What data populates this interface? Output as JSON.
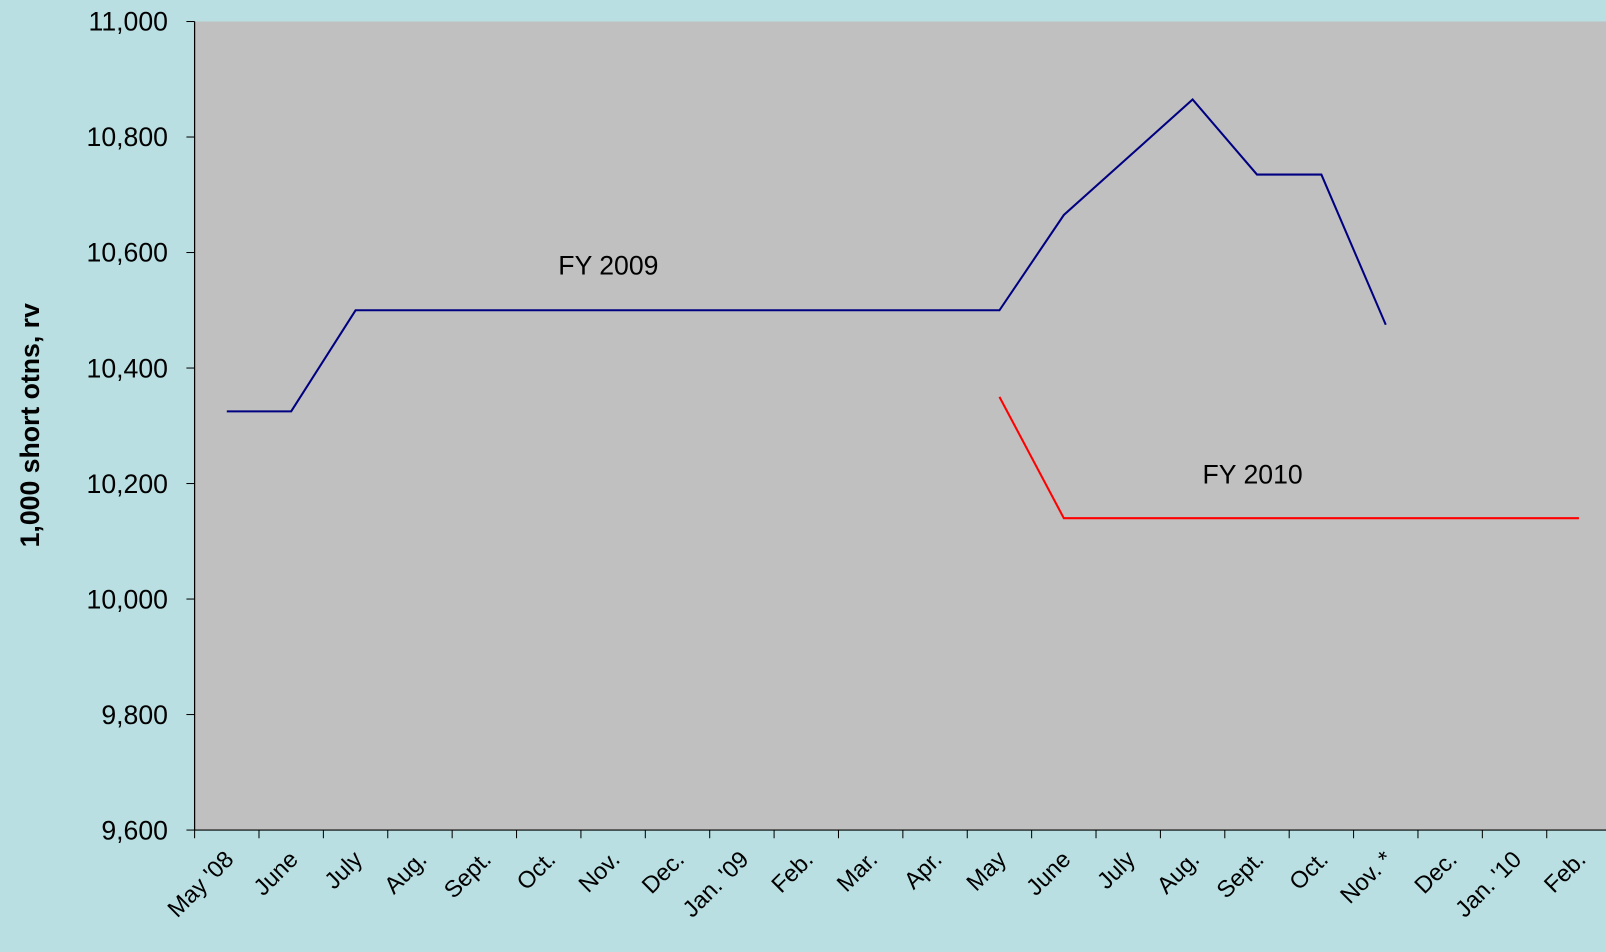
{
  "chart_data": {
    "type": "line",
    "y_label": "1,000 short otns, rv",
    "categories": [
      "May '08",
      "June",
      "July",
      "Aug.",
      "Sept.",
      "Oct.",
      "Nov.",
      "Dec.",
      "Jan. '09",
      "Feb.",
      "Mar.",
      "Apr.",
      "May",
      "June",
      "July",
      "Aug.",
      "Sept.",
      "Oct.",
      "Nov. *",
      "Dec.",
      "Jan. '10",
      "Feb."
    ],
    "series": [
      {
        "name": "FY 2009",
        "color": "#000080",
        "values": [
          10325,
          10325,
          10500,
          10500,
          10500,
          10500,
          10500,
          10500,
          10500,
          10500,
          10500,
          10500,
          10500,
          10665,
          10765,
          10865,
          10735,
          10735,
          10475,
          null,
          null,
          null
        ]
      },
      {
        "name": "FY 2010",
        "color": "#ff0000",
        "values": [
          null,
          null,
          null,
          null,
          null,
          null,
          null,
          null,
          null,
          null,
          null,
          null,
          10350,
          10140,
          10140,
          10140,
          10140,
          10140,
          10140,
          10140,
          10140,
          10140
        ]
      }
    ],
    "ylim": [
      9600,
      11000
    ],
    "yticks": [
      {
        "value": 9600,
        "label": "9,600"
      },
      {
        "value": 9800,
        "label": "9,800"
      },
      {
        "value": 10000,
        "label": "10,000"
      },
      {
        "value": 10200,
        "label": "10,200"
      },
      {
        "value": 10400,
        "label": "10,400"
      },
      {
        "value": 10600,
        "label": "10,600"
      },
      {
        "value": 10800,
        "label": "10,800"
      },
      {
        "value": 11000,
        "label": "11,000"
      }
    ],
    "grid": false
  }
}
